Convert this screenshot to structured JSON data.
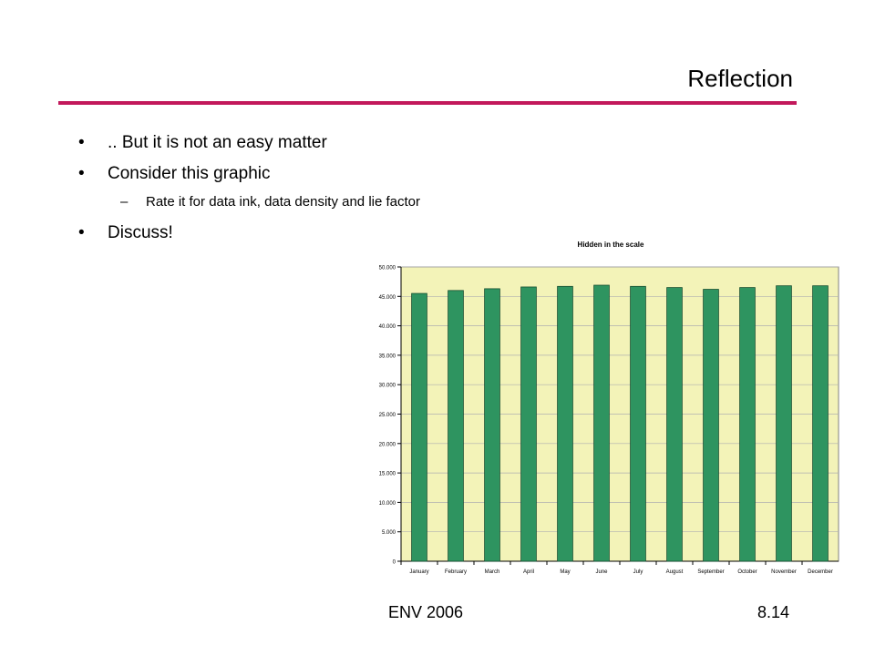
{
  "slide": {
    "title": "Reflection",
    "accent_color": "#c2185b",
    "bullets": [
      {
        "text": ".. But it is not an easy matter"
      },
      {
        "text": "Consider this graphic",
        "sub": "Rate it for data ink, data density and lie factor"
      },
      {
        "text": "Discuss!"
      }
    ],
    "bullet_glyph": "•",
    "sub_glyph": "–",
    "footer_left": "ENV 2006",
    "footer_right": "8.14"
  },
  "chart_data": {
    "type": "bar",
    "title": "Hidden in the scale",
    "categories": [
      "January",
      "February",
      "March",
      "April",
      "May",
      "June",
      "July",
      "August",
      "September",
      "October",
      "November",
      "December"
    ],
    "values": [
      45500,
      46000,
      46300,
      46600,
      46700,
      46900,
      46700,
      46500,
      46200,
      46500,
      46800,
      46800
    ],
    "ylim": [
      0,
      50000
    ],
    "yticks": [
      0,
      5000,
      10000,
      15000,
      20000,
      25000,
      30000,
      35000,
      40000,
      45000,
      50000
    ],
    "ytick_labels": [
      "0",
      "5.000",
      "10.000",
      "15.000",
      "20.000",
      "25.000",
      "30.000",
      "35.000",
      "40.000",
      "45.000",
      "50.000"
    ],
    "grid": true,
    "colors": {
      "plot_bg": "#f3f3b8",
      "bar": "#2e9460",
      "bar_edge": "#134d2f",
      "grid": "#b0b0b0"
    }
  }
}
